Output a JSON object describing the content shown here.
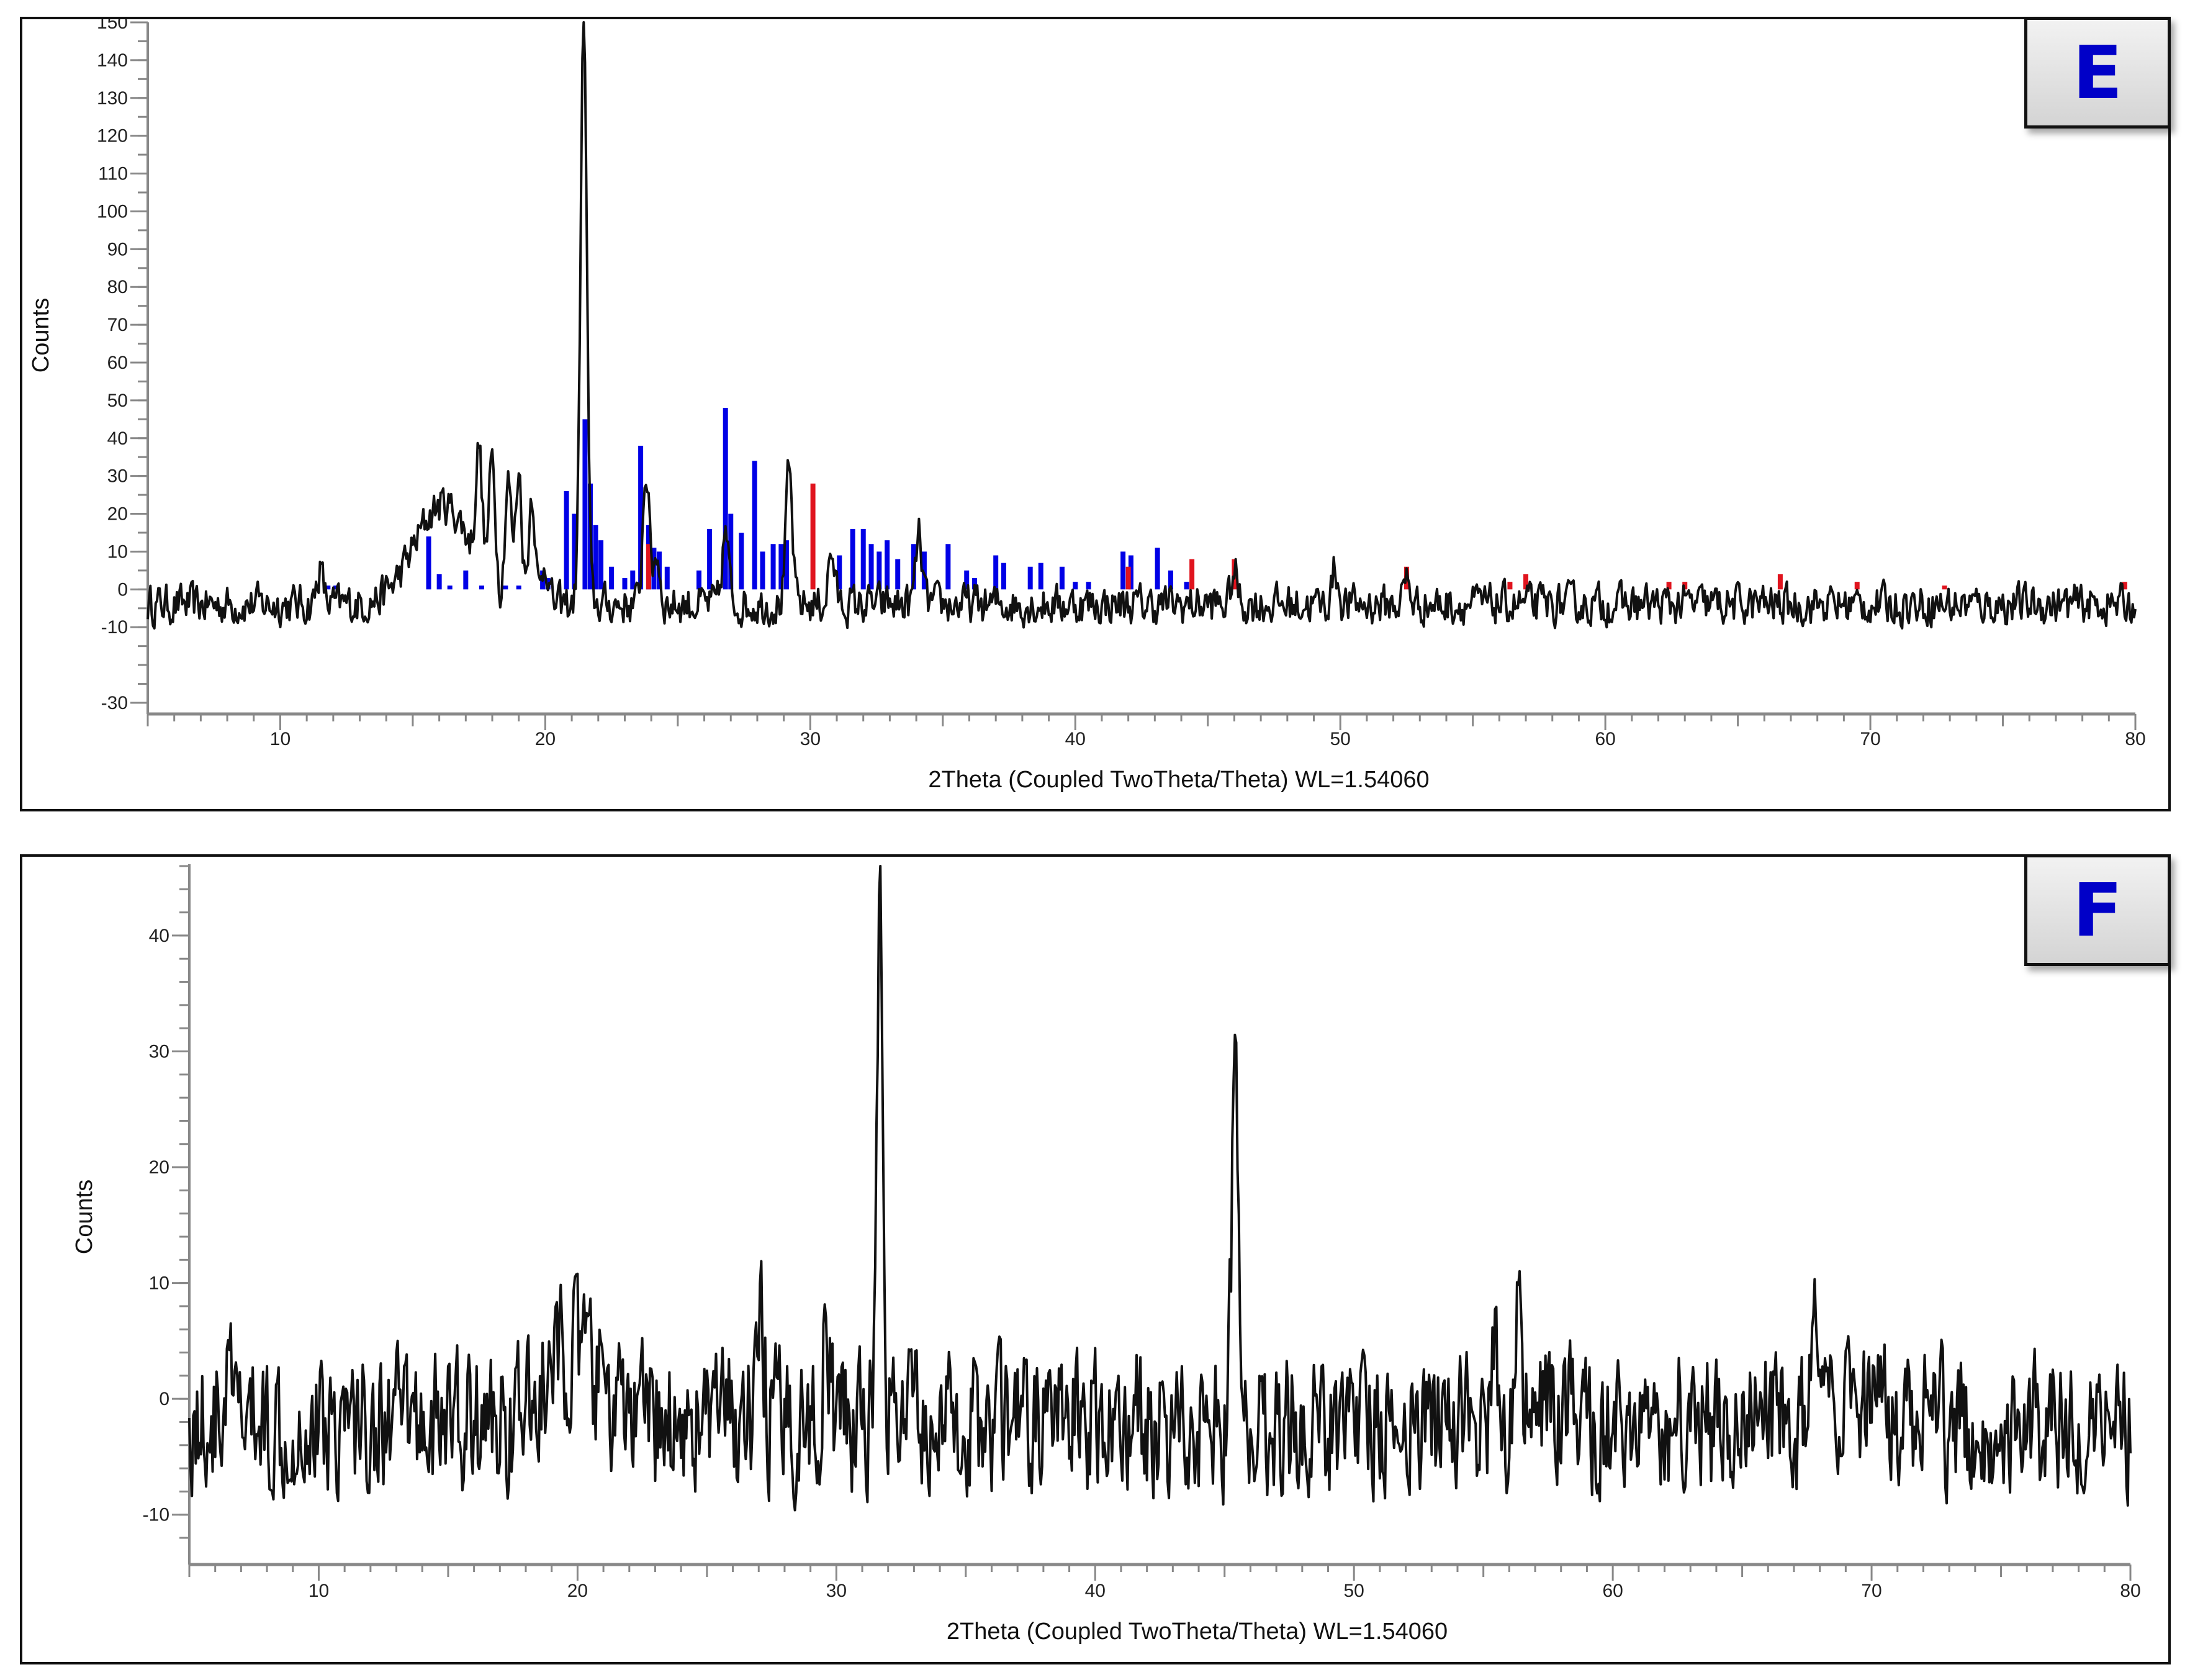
{
  "figure": {
    "panels": [
      {
        "id": "E",
        "label": "E",
        "ylabel": "Counts",
        "xlabel": "2Theta (Coupled TwoTheta/Theta) WL=1.54060"
      },
      {
        "id": "F",
        "label": "F",
        "ylabel": "Counts",
        "xlabel": "2Theta (Coupled TwoTheta/Theta) WL=1.54060"
      }
    ]
  },
  "colors": {
    "pattern_line": "#111111",
    "reference_blue": "#0000e6",
    "reference_red": "#e0141e",
    "label_text": "#0000c8",
    "axis": "#888888"
  },
  "chart_data": [
    {
      "type": "line",
      "title": "E",
      "xlabel": "2Theta (Coupled TwoTheta/Theta) WL=1.54060",
      "ylabel": "Counts",
      "xlim": [
        5,
        80
      ],
      "ylim": [
        -30,
        150
      ],
      "x_ticks": [
        10,
        20,
        30,
        40,
        50,
        60,
        70,
        80
      ],
      "y_ticks": [
        150,
        140,
        130,
        120,
        110,
        100,
        90,
        80,
        70,
        60,
        50,
        40,
        30,
        20,
        10,
        0,
        -10,
        -30
      ],
      "grid": false,
      "series": [
        {
          "name": "measured pattern",
          "color": "#111111",
          "baseline": -4,
          "noise_amplitude": 4,
          "features": [
            {
              "x": 11.5,
              "y": 7
            },
            {
              "x": 15.5,
              "y": 10
            },
            {
              "x": 16.5,
              "y": 18
            },
            {
              "x": 17.5,
              "y": 27
            },
            {
              "x": 18.0,
              "y": 30
            },
            {
              "x": 18.6,
              "y": 28
            },
            {
              "x": 19.0,
              "y": 31
            },
            {
              "x": 19.5,
              "y": 26
            },
            {
              "x": 20.0,
              "y": 10
            },
            {
              "x": 21.45,
              "y": 152
            },
            {
              "x": 23.8,
              "y": 32
            },
            {
              "x": 24.2,
              "y": 12
            },
            {
              "x": 26.8,
              "y": 18
            },
            {
              "x": 29.2,
              "y": 31
            },
            {
              "x": 30.8,
              "y": 12
            },
            {
              "x": 34.1,
              "y": 17
            },
            {
              "x": 46.0,
              "y": 6
            },
            {
              "x": 49.8,
              "y": 7
            },
            {
              "x": 52.5,
              "y": 4
            }
          ]
        },
        {
          "name": "reference phase 1 (blue sticks)",
          "color": "#0000e6",
          "type": "stick",
          "sticks": [
            {
              "x": 11.8,
              "y": 1
            },
            {
              "x": 12.1,
              "y": 1
            },
            {
              "x": 15.6,
              "y": 14
            },
            {
              "x": 16.0,
              "y": 4
            },
            {
              "x": 16.4,
              "y": 1
            },
            {
              "x": 17.0,
              "y": 5
            },
            {
              "x": 17.6,
              "y": 1
            },
            {
              "x": 18.5,
              "y": 1
            },
            {
              "x": 19.0,
              "y": 1
            },
            {
              "x": 19.9,
              "y": 5
            },
            {
              "x": 20.1,
              "y": 3
            },
            {
              "x": 20.8,
              "y": 26
            },
            {
              "x": 21.1,
              "y": 20
            },
            {
              "x": 21.5,
              "y": 45
            },
            {
              "x": 21.7,
              "y": 28
            },
            {
              "x": 21.9,
              "y": 17
            },
            {
              "x": 22.1,
              "y": 13
            },
            {
              "x": 22.5,
              "y": 6
            },
            {
              "x": 23.0,
              "y": 3
            },
            {
              "x": 23.3,
              "y": 5
            },
            {
              "x": 23.6,
              "y": 38
            },
            {
              "x": 23.9,
              "y": 17
            },
            {
              "x": 24.1,
              "y": 11
            },
            {
              "x": 24.3,
              "y": 10
            },
            {
              "x": 24.6,
              "y": 6
            },
            {
              "x": 25.8,
              "y": 5
            },
            {
              "x": 26.2,
              "y": 16
            },
            {
              "x": 26.8,
              "y": 48
            },
            {
              "x": 27.0,
              "y": 20
            },
            {
              "x": 27.4,
              "y": 15
            },
            {
              "x": 27.9,
              "y": 34
            },
            {
              "x": 28.2,
              "y": 10
            },
            {
              "x": 28.6,
              "y": 12
            },
            {
              "x": 28.9,
              "y": 12
            },
            {
              "x": 29.1,
              "y": 13
            },
            {
              "x": 31.1,
              "y": 9
            },
            {
              "x": 31.6,
              "y": 16
            },
            {
              "x": 32.0,
              "y": 16
            },
            {
              "x": 32.3,
              "y": 12
            },
            {
              "x": 32.6,
              "y": 10
            },
            {
              "x": 32.9,
              "y": 13
            },
            {
              "x": 33.3,
              "y": 8
            },
            {
              "x": 33.9,
              "y": 12
            },
            {
              "x": 34.3,
              "y": 10
            },
            {
              "x": 35.2,
              "y": 12
            },
            {
              "x": 35.9,
              "y": 5
            },
            {
              "x": 36.2,
              "y": 3
            },
            {
              "x": 37.0,
              "y": 9
            },
            {
              "x": 37.3,
              "y": 7
            },
            {
              "x": 38.3,
              "y": 6
            },
            {
              "x": 38.7,
              "y": 7
            },
            {
              "x": 39.5,
              "y": 6
            },
            {
              "x": 40.0,
              "y": 2
            },
            {
              "x": 40.5,
              "y": 2
            },
            {
              "x": 41.8,
              "y": 10
            },
            {
              "x": 42.1,
              "y": 9
            },
            {
              "x": 43.1,
              "y": 11
            },
            {
              "x": 43.6,
              "y": 5
            },
            {
              "x": 44.2,
              "y": 2
            }
          ]
        },
        {
          "name": "reference phase 2 (red sticks)",
          "color": "#e0141e",
          "type": "stick",
          "sticks": [
            {
              "x": 23.9,
              "y": 12
            },
            {
              "x": 30.1,
              "y": 28
            },
            {
              "x": 42.0,
              "y": 6
            },
            {
              "x": 44.4,
              "y": 8
            },
            {
              "x": 46.0,
              "y": 8
            },
            {
              "x": 52.5,
              "y": 6
            },
            {
              "x": 56.4,
              "y": 2
            },
            {
              "x": 57.0,
              "y": 4
            },
            {
              "x": 62.4,
              "y": 2
            },
            {
              "x": 63.0,
              "y": 2
            },
            {
              "x": 66.6,
              "y": 4
            },
            {
              "x": 69.5,
              "y": 2
            },
            {
              "x": 72.8,
              "y": 1
            },
            {
              "x": 79.6,
              "y": 2
            }
          ]
        }
      ]
    },
    {
      "type": "line",
      "title": "F",
      "xlabel": "2Theta (Coupled TwoTheta/Theta) WL=1.54060",
      "ylabel": "Counts",
      "xlim": [
        5,
        80
      ],
      "ylim": [
        -13.5,
        46
      ],
      "x_ticks": [
        10,
        20,
        30,
        40,
        50,
        60,
        70,
        80
      ],
      "y_ticks": [
        40,
        30,
        20,
        10,
        0,
        -10
      ],
      "grid": false,
      "series": [
        {
          "name": "measured pattern",
          "color": "#111111",
          "baseline": -2,
          "noise_amplitude": 4.5,
          "features": [
            {
              "x": 6.5,
              "y": 3
            },
            {
              "x": 19.8,
              "y": 5
            },
            {
              "x": 27.1,
              "y": 8
            },
            {
              "x": 29.6,
              "y": 7
            },
            {
              "x": 31.7,
              "y": 42
            },
            {
              "x": 45.4,
              "y": 28
            },
            {
              "x": 49.9,
              "y": 6
            },
            {
              "x": 55.4,
              "y": 5
            },
            {
              "x": 56.3,
              "y": 10
            },
            {
              "x": 67.8,
              "y": 5
            }
          ]
        }
      ]
    }
  ]
}
